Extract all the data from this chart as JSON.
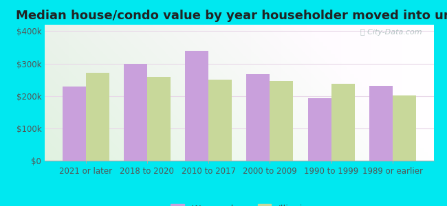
{
  "title": "Median house/condo value by year householder moved into unit",
  "categories": [
    "2021 or later",
    "2018 to 2020",
    "2010 to 2017",
    "2000 to 2009",
    "1990 to 1999",
    "1989 or earlier"
  ],
  "wauconda": [
    230000,
    300000,
    340000,
    268000,
    192000,
    232000
  ],
  "illinois": [
    272000,
    258000,
    250000,
    246000,
    238000,
    202000
  ],
  "wauconda_color": "#c9a0dc",
  "illinois_color": "#c8d89a",
  "background_outer": "#00e8f0",
  "ylabel_ticks": [
    "$0",
    "$100k",
    "$200k",
    "$300k",
    "$400k"
  ],
  "ytick_vals": [
    0,
    100000,
    200000,
    300000,
    400000
  ],
  "ylim": [
    0,
    420000
  ],
  "bar_width": 0.38,
  "title_fontsize": 13,
  "tick_fontsize": 8.5,
  "legend_fontsize": 9.5,
  "watermark": "ⓘ City-Data.com"
}
